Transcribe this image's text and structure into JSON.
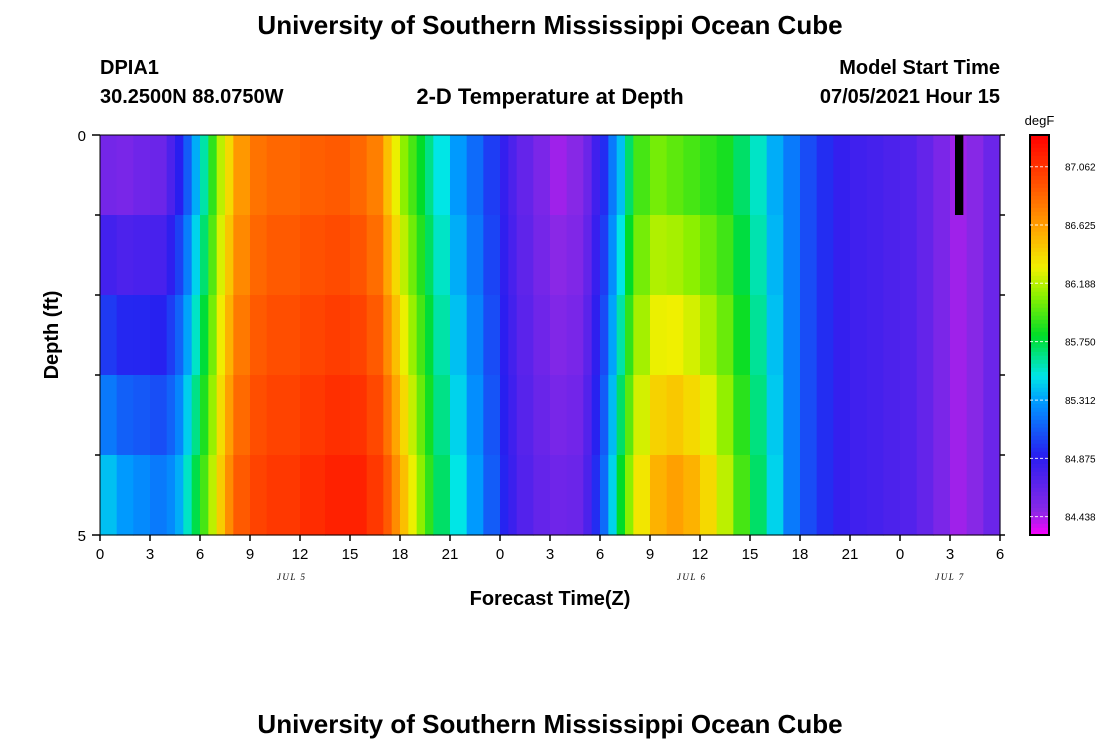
{
  "header": {
    "title": "University of Southern Mississippi Ocean Cube",
    "station_id": "DPIA1",
    "station_coords": "30.2500N  88.0750W",
    "plot_title": "2-D Temperature at Depth",
    "model_start_label": "Model Start Time",
    "model_start_value": "07/05/2021 Hour 15"
  },
  "footer": {
    "title": "University of Southern Mississippi Ocean Cube"
  },
  "chart_data": {
    "type": "heatmap",
    "title": "2-D Temperature at Depth",
    "xlabel": "Forecast Time(Z)",
    "ylabel": "Depth (ft)",
    "x_tick_labels": [
      "0",
      "3",
      "6",
      "9",
      "12",
      "15",
      "18",
      "21",
      "0",
      "3",
      "6",
      "9",
      "12",
      "15",
      "18",
      "21",
      "0",
      "3",
      "6"
    ],
    "x_hours": [
      0,
      3,
      6,
      9,
      12,
      15,
      18,
      21,
      24,
      27,
      30,
      33,
      36,
      39,
      42,
      45,
      48,
      51,
      54
    ],
    "xlim": [
      0,
      54
    ],
    "date_labels": [
      {
        "label": "JUL 5",
        "hour": 11.5
      },
      {
        "label": "JUL 6",
        "hour": 35.5
      },
      {
        "label": "JUL 7",
        "hour": 51
      }
    ],
    "y_tick_labels": [
      "0",
      "5"
    ],
    "ylim": [
      0,
      5
    ],
    "depth_layers": 5,
    "colorbar": {
      "unit": "degF",
      "min": 84.3,
      "max": 87.3,
      "tick_values": [
        87.062,
        86.625,
        86.188,
        85.75,
        85.312,
        84.875,
        84.438
      ],
      "tick_labels": [
        "87.062",
        "86.625",
        "86.188",
        "85.750",
        "85.312",
        "84.875",
        "84.438"
      ]
    },
    "temperature_profile_degF": {
      "hours": [
        0,
        1,
        2,
        3,
        4,
        4.5,
        5,
        5.5,
        6,
        6.5,
        7,
        7.5,
        8,
        9,
        10,
        12,
        13.5,
        15,
        16,
        17,
        17.5,
        18,
        18.5,
        19,
        19.5,
        20,
        21,
        22,
        23,
        24,
        24.5,
        25,
        26,
        27,
        28,
        29,
        29.5,
        30,
        30.5,
        31,
        31.5,
        32,
        33,
        34,
        35,
        36,
        37,
        38,
        39,
        40,
        41,
        42,
        43,
        44,
        45,
        46,
        47,
        48,
        49,
        50,
        51,
        52,
        53,
        54
      ],
      "surface": [
        84.58,
        84.56,
        84.6,
        84.62,
        84.75,
        84.9,
        85.1,
        85.35,
        85.6,
        85.9,
        86.2,
        86.4,
        86.65,
        86.8,
        86.85,
        86.88,
        86.9,
        86.85,
        86.75,
        86.5,
        86.3,
        86.1,
        85.95,
        85.8,
        85.65,
        85.5,
        85.3,
        85.15,
        85.0,
        84.85,
        84.75,
        84.65,
        84.55,
        84.45,
        84.5,
        84.62,
        84.8,
        84.95,
        85.2,
        85.4,
        85.7,
        85.95,
        86.05,
        86.0,
        85.95,
        85.9,
        85.85,
        85.7,
        85.55,
        85.35,
        85.2,
        85.05,
        84.95,
        84.85,
        84.8,
        84.78,
        84.75,
        84.72,
        84.65,
        84.55,
        84.45,
        84.5,
        84.62,
        84.7
      ],
      "bottom": [
        85.4,
        85.3,
        85.25,
        85.2,
        85.25,
        85.35,
        85.55,
        85.75,
        85.95,
        86.2,
        86.45,
        86.7,
        86.9,
        87.0,
        87.05,
        87.1,
        87.15,
        87.15,
        87.05,
        86.9,
        86.7,
        86.5,
        86.3,
        86.1,
        85.9,
        85.7,
        85.5,
        85.3,
        85.1,
        84.92,
        84.82,
        84.72,
        84.65,
        84.6,
        84.62,
        84.75,
        84.95,
        85.15,
        85.45,
        85.8,
        86.1,
        86.35,
        86.55,
        86.62,
        86.55,
        86.4,
        86.2,
        85.95,
        85.7,
        85.45,
        85.2,
        85.05,
        84.95,
        84.85,
        84.8,
        84.78,
        84.75,
        84.72,
        84.65,
        84.55,
        84.45,
        84.5,
        84.62,
        84.7
      ]
    },
    "missing_data": [
      {
        "hour_start": 51.3,
        "hour_end": 51.8,
        "depth_start": 0,
        "depth_end": 1
      }
    ]
  }
}
